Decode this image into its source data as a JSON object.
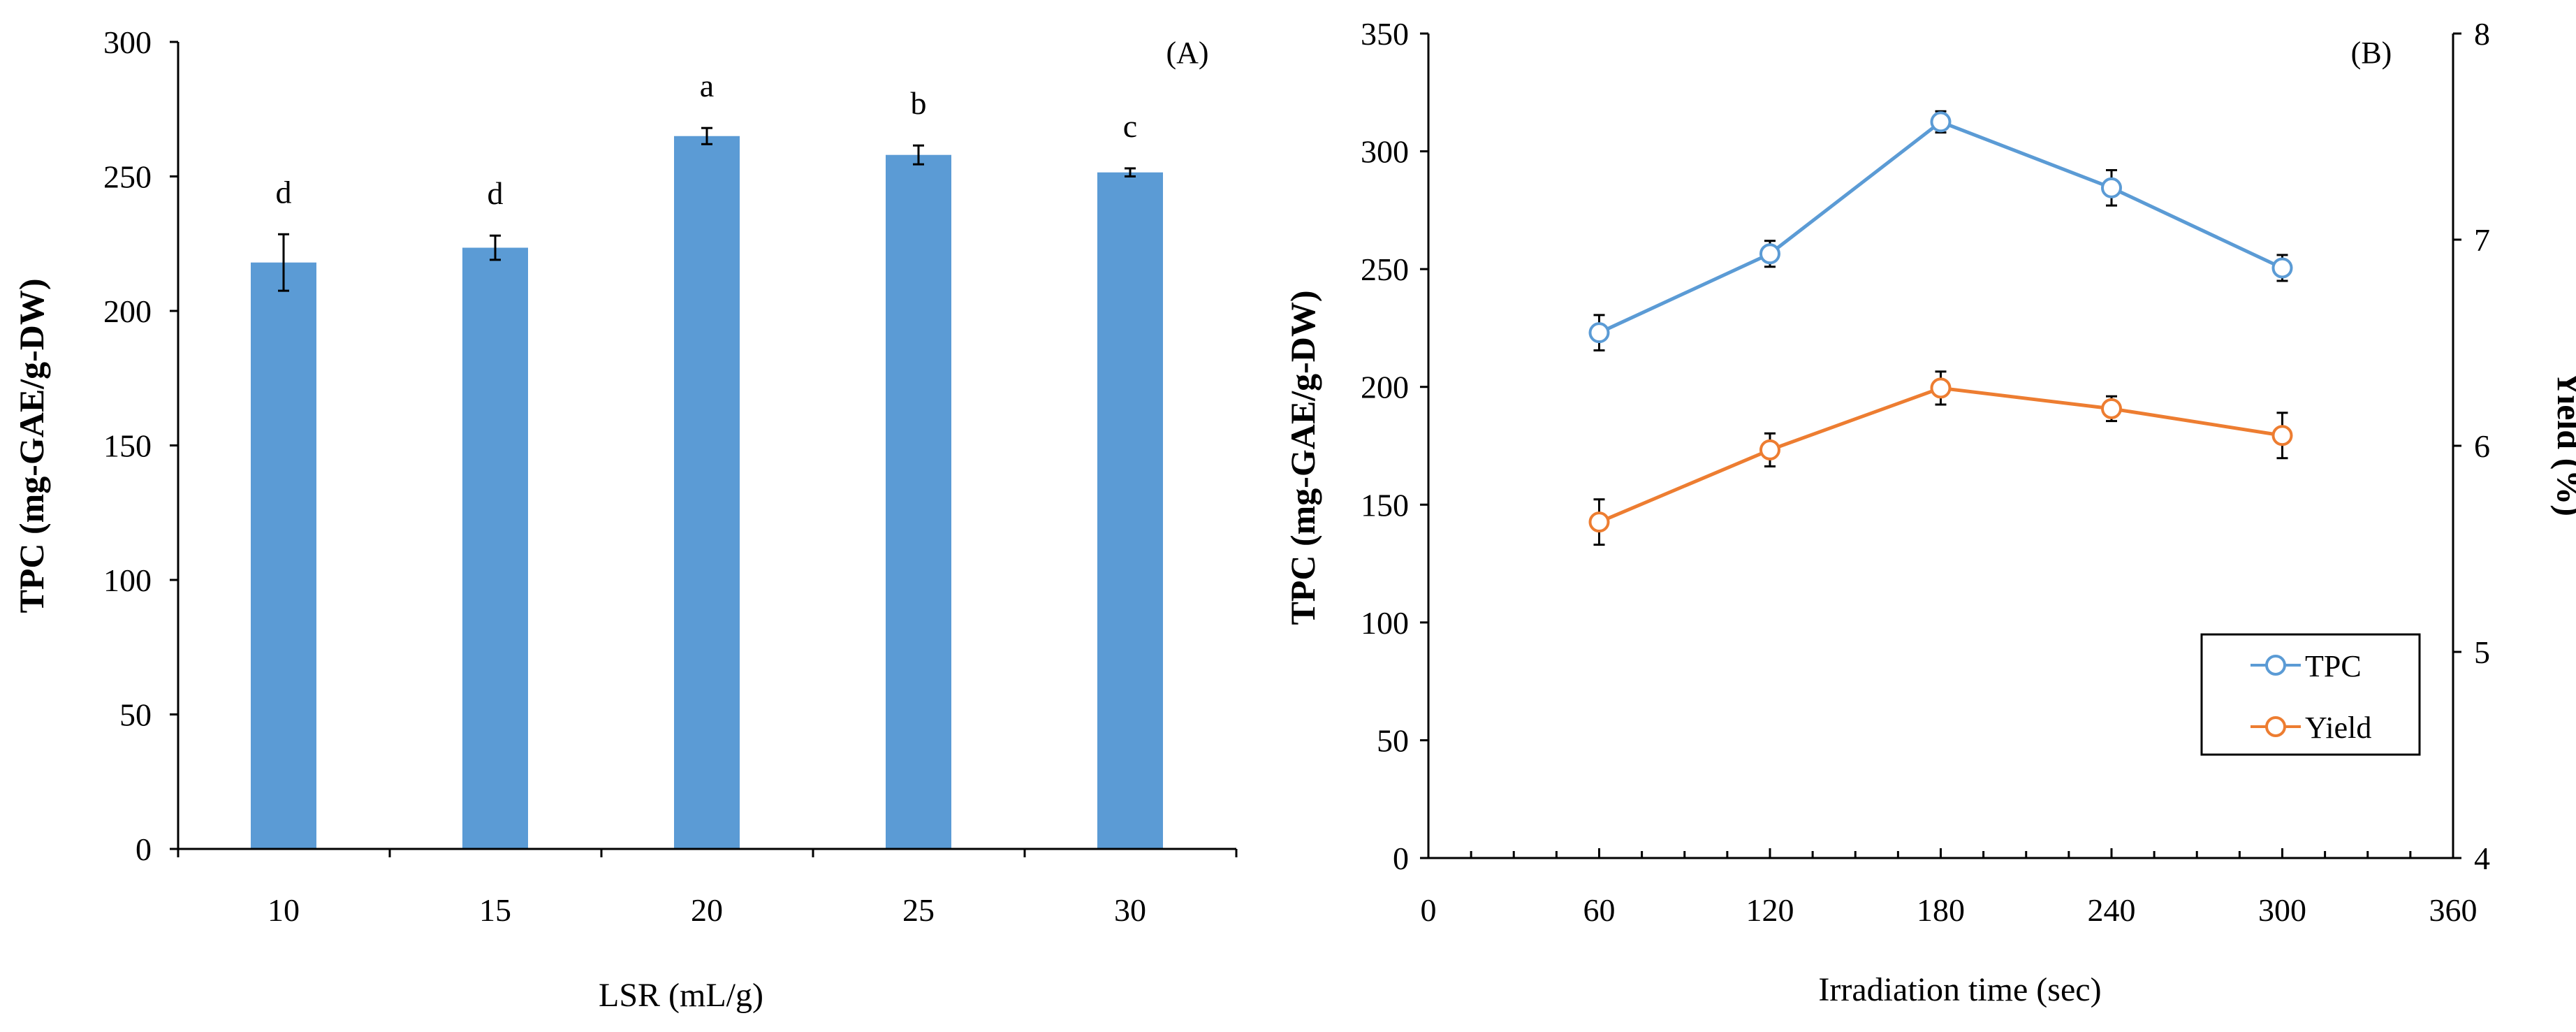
{
  "chart_data": [
    {
      "type": "bar",
      "panel_label": "(A)",
      "categories": [
        "10",
        "15",
        "20",
        "25",
        "30"
      ],
      "values": [
        218,
        223.5,
        265,
        258,
        251.5
      ],
      "errors": [
        10.5,
        4.5,
        3,
        3.5,
        1.5
      ],
      "significance": [
        "d",
        "d",
        "a",
        "b",
        "c"
      ],
      "bar_color": "#5b9bd5",
      "xlabel": "LSR (mL/g)",
      "ylabel": "TPC (mg-GAE/g-DW)",
      "ylim": [
        0,
        300
      ],
      "yticks": [
        "0",
        "50",
        "100",
        "150",
        "200",
        "250",
        "300"
      ],
      "grid": false
    },
    {
      "type": "line",
      "panel_label": "(B)",
      "x": [
        60,
        120,
        180,
        240,
        300
      ],
      "xticks": [
        "0",
        "60",
        "120",
        "180",
        "240",
        "300",
        "360"
      ],
      "xlim": [
        0,
        360
      ],
      "xlabel": "Irradiation time (sec)",
      "ylabel": "TPC (mg-GAE/g-DW)",
      "ylim": [
        0,
        350
      ],
      "yticks": [
        "0",
        "50",
        "100",
        "150",
        "200",
        "250",
        "300",
        "350"
      ],
      "y2label": "Yield (%)",
      "y2lim": [
        4,
        8
      ],
      "y2ticks": [
        "4",
        "5",
        "6",
        "7",
        "8"
      ],
      "legend_position": "right-middle",
      "grid": false,
      "series": [
        {
          "name": "TPC",
          "axis": "left",
          "color": "#5b9bd5",
          "values": [
            223,
            256.5,
            312.5,
            284.5,
            250.5
          ],
          "errors": [
            7.5,
            5.5,
            4.5,
            7.5,
            5.5
          ]
        },
        {
          "name": "Yield",
          "axis": "right",
          "color": "#ed7d31",
          "values": [
            5.63,
            5.98,
            6.28,
            6.18,
            6.05
          ],
          "errors": [
            0.11,
            0.08,
            0.08,
            0.06,
            0.11
          ]
        }
      ]
    }
  ]
}
